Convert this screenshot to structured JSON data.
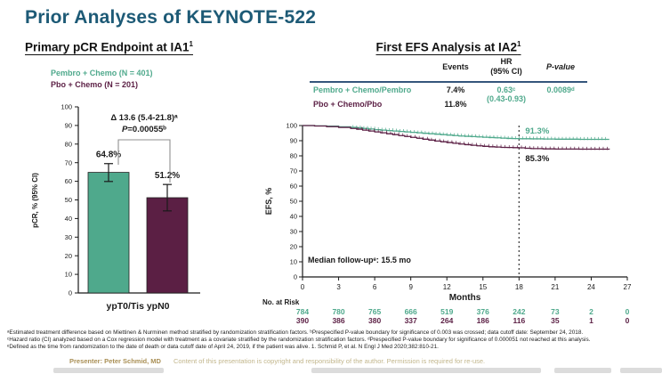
{
  "slide": {
    "title": "Prior Analyses of KEYNOTE-522",
    "footnote1": "ᵃEstimated treatment difference based on Miettinen & Nurminen method stratified by randomization stratification factors. ᵇPrespecified P-value boundary for significance of 0.003 was crossed; data cutoff date: September 24, 2018.",
    "footnote2": "ᶜHazard ratio (CI) analyzed based on a Cox regression model with treatment as a covariate stratified by the randomization stratification factors. ᵈPrespecified P-value boundary for significance of 0.000051 not reached at this analysis.",
    "footnote3": "ᵉDefined as the time from randomization to the date of death or data cutoff date of April 24, 2019, if the patient was alive. 1. Schmid P, et al. N Engl J Med 2020;382:810-21.",
    "presenter": "Presenter: Peter Schmid, MD",
    "copyright": "Content of this presentation is copyright and responsibility of the author. Permission is required for re-use."
  },
  "colors": {
    "title_teal": "#1d5a76",
    "pembro_green": "#4fa98c",
    "pbo_maroon": "#5b1f44",
    "divider_navy": "#35567c",
    "gold": "#a98f55",
    "gold_light": "#c2b68c",
    "bracket_gray": "#909090",
    "ink": "#1a1a1a"
  },
  "pcr_panel": {
    "title": "Primary pCR Endpoint at IA1",
    "title_sup": "1",
    "legend_pembro": "Pembro + Chemo (N = 401)",
    "legend_pbo": "Pbo + Chemo (N = 201)"
  },
  "efs_panel": {
    "title": "First EFS Analysis at IA2",
    "title_sup": "1",
    "col_events": "Events",
    "col_hr_line1": "HR",
    "col_hr_line2": "(95% CI)",
    "col_p": "P-value",
    "row1_label": "Pembro + Chemo/Pembro",
    "row1_events": "7.4%",
    "row1_hr": "0.63ᶜ",
    "row1_hr_ci": "(0.43-0.93)",
    "row1_p": "0.0089ᵈ",
    "row2_label": "Pbo + Chemo/Pbo",
    "row2_events": "11.8%"
  },
  "chart_data": [
    {
      "type": "bar",
      "title": "Primary pCR Endpoint at IA1¹",
      "categories": [
        "Pembro + Chemo (N = 401)",
        "Pbo + Chemo (N = 201)"
      ],
      "values": [
        64.8,
        51.2
      ],
      "ci_low": [
        59.9,
        44.1
      ],
      "ci_high": [
        69.5,
        58.3
      ],
      "bar_labels": [
        "64.8%",
        "51.2%"
      ],
      "bar_colors": [
        "#4fa98c",
        "#5b1f44"
      ],
      "ylabel": "pCR, % (95% CI)",
      "ylim": [
        0,
        100
      ],
      "ytick_step": 10,
      "xlabel": "ypT0/Tis ypN0",
      "annotation_delta": "Δ 13.6 (5.4-21.8)ᵃ",
      "annotation_p": "P=0.00055ᵇ",
      "grid": false,
      "legend_position": "above-left"
    },
    {
      "type": "line",
      "subtype": "kaplan-meier-step",
      "title": "First EFS Analysis at IA2¹",
      "xlabel": "Months",
      "ylabel": "EFS, %",
      "xlim": [
        0,
        27
      ],
      "xticks": [
        0,
        3,
        6,
        9,
        12,
        15,
        18,
        21,
        24,
        27
      ],
      "ylim": [
        0,
        100
      ],
      "ytick_step": 10,
      "grid": false,
      "dashed_x": 18,
      "median_note": "Median follow-upᵉ: 15.5 mo",
      "series": [
        {
          "name": "Pembro + Chemo/Pembro",
          "color": "#4fa98c",
          "label_at_dash": "91.3%",
          "censor": [
            4.2,
            25.4,
            0.3
          ],
          "points": [
            [
              0,
              100
            ],
            [
              1,
              99.8
            ],
            [
              2,
              99.6
            ],
            [
              3,
              99.2
            ],
            [
              4,
              98.8
            ],
            [
              4.5,
              98.5
            ],
            [
              5,
              98.1
            ],
            [
              5.5,
              97.7
            ],
            [
              6,
              97.3
            ],
            [
              6.5,
              97.0
            ],
            [
              7,
              96.7
            ],
            [
              7.5,
              96.4
            ],
            [
              8,
              96.1
            ],
            [
              8.5,
              95.8
            ],
            [
              9,
              95.5
            ],
            [
              9.5,
              95.2
            ],
            [
              10,
              94.9
            ],
            [
              10.5,
              94.6
            ],
            [
              11,
              94.3
            ],
            [
              11.5,
              94.0
            ],
            [
              12,
              93.7
            ],
            [
              12.5,
              93.4
            ],
            [
              13,
              93.1
            ],
            [
              13.5,
              92.9
            ],
            [
              14,
              92.7
            ],
            [
              14.5,
              92.5
            ],
            [
              15,
              92.3
            ],
            [
              15.5,
              92.1
            ],
            [
              16,
              91.9
            ],
            [
              16.5,
              91.7
            ],
            [
              17,
              91.5
            ],
            [
              17.5,
              91.4
            ],
            [
              18,
              91.3
            ],
            [
              19,
              91.2
            ],
            [
              20,
              91.1
            ],
            [
              21,
              91.0
            ],
            [
              23,
              90.9
            ],
            [
              25.5,
              90.9
            ]
          ]
        },
        {
          "name": "Pbo + Chemo/Pbo",
          "color": "#5b1f44",
          "label_at_dash": "85.3%",
          "censor": [
            4.6,
            25.4,
            0.34
          ],
          "points": [
            [
              0,
              100
            ],
            [
              1,
              99.7
            ],
            [
              2,
              99.3
            ],
            [
              3,
              98.8
            ],
            [
              4,
              98.1
            ],
            [
              4.5,
              97.6
            ],
            [
              5,
              97.0
            ],
            [
              5.5,
              96.4
            ],
            [
              6,
              95.8
            ],
            [
              6.5,
              95.2
            ],
            [
              7,
              94.6
            ],
            [
              7.5,
              94.0
            ],
            [
              8,
              93.4
            ],
            [
              8.5,
              92.8
            ],
            [
              9,
              92.2
            ],
            [
              9.5,
              91.6
            ],
            [
              10,
              91.0
            ],
            [
              10.5,
              90.4
            ],
            [
              11,
              89.8
            ],
            [
              11.5,
              89.3
            ],
            [
              12,
              88.8
            ],
            [
              12.5,
              88.3
            ],
            [
              13,
              87.8
            ],
            [
              13.5,
              87.4
            ],
            [
              14,
              87.0
            ],
            [
              14.5,
              86.6
            ],
            [
              15,
              86.3
            ],
            [
              15.5,
              86.0
            ],
            [
              16,
              85.8
            ],
            [
              16.5,
              85.6
            ],
            [
              17,
              85.5
            ],
            [
              17.5,
              85.4
            ],
            [
              18,
              85.3
            ],
            [
              18.5,
              85.0
            ],
            [
              19,
              84.8
            ],
            [
              20,
              84.6
            ],
            [
              21,
              84.5
            ],
            [
              23,
              84.4
            ],
            [
              25.5,
              84.3
            ]
          ]
        }
      ],
      "at_risk_label": "No. at Risk",
      "at_risk": [
        [
          784,
          780,
          765,
          666,
          519,
          376,
          242,
          73,
          2,
          0
        ],
        [
          390,
          386,
          380,
          337,
          264,
          186,
          116,
          35,
          1,
          0
        ]
      ]
    }
  ]
}
